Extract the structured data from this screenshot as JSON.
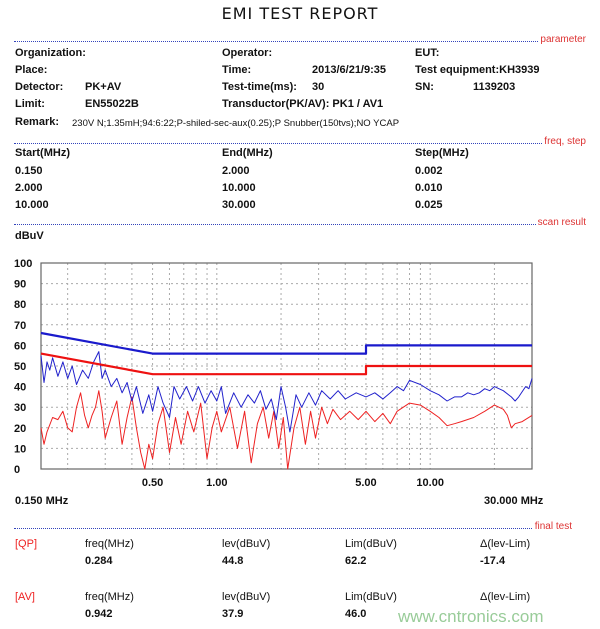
{
  "title": "EMI TEST REPORT",
  "sections": {
    "parameter": "parameter",
    "freq_step": "freq, step",
    "scan_result": "scan result",
    "final_test": "final test"
  },
  "parameter": {
    "organization_label": "Organization:",
    "operator_label": "Operator:",
    "eut_label": "EUT:",
    "place_label": "Place:",
    "time_label": "Time:",
    "time_value": "2013/6/21/9:35",
    "equipment": "Test equipment:KH3939",
    "detector_label": "Detector:",
    "detector_value": "PK+AV",
    "testtime_label": "Test-time(ms):",
    "testtime_value": "30",
    "sn_label": "SN:",
    "sn_value": "1139203",
    "limit_label": "Limit:",
    "limit_value": "EN55022B",
    "transductor": "Transductor(PK/AV): PK1  /  AV1",
    "remark_label": "Remark:",
    "remark_value": "230V N;1.35mH;94:6:22;P-shiled-sec-aux(0.25);P Snubber(150tvs);NO YCAP"
  },
  "freq_step": {
    "headers": [
      "Start(MHz)",
      "End(MHz)",
      "Step(MHz)"
    ],
    "rows": [
      [
        "0.150",
        "2.000",
        "0.002"
      ],
      [
        "2.000",
        "10.000",
        "0.010"
      ],
      [
        "10.000",
        "30.000",
        "0.025"
      ]
    ]
  },
  "final_test": [
    {
      "tag": "[QP]",
      "headers": [
        "freq(MHz)",
        "lev(dBuV)",
        "Lim(dBuV)",
        "Δ(lev-Lim)"
      ],
      "values": [
        "0.284",
        "44.8",
        "62.2",
        "-17.4"
      ]
    },
    {
      "tag": "[AV]",
      "headers": [
        "freq(MHz)",
        "lev(dBuV)",
        "Lim(dBuV)",
        "Δ(lev-Lim)"
      ],
      "values": [
        "0.942",
        "37.9",
        "46.0",
        ""
      ]
    }
  ],
  "watermark": "www.cntronics.com",
  "chart_data": {
    "type": "line",
    "ylabel": "dBuV",
    "xscale": "log",
    "xlim": [
      0.15,
      30
    ],
    "ylim": [
      0,
      100
    ],
    "yticks": [
      "0",
      "10",
      "20",
      "30",
      "40",
      "50",
      "60",
      "70",
      "80",
      "90",
      "100"
    ],
    "xticks": [
      {
        "v": 0.5,
        "label": "0.50"
      },
      {
        "v": 1,
        "label": "1.00"
      },
      {
        "v": 5,
        "label": "5.00"
      },
      {
        "v": 10,
        "label": "10.00"
      }
    ],
    "xmin_label": "0.150 MHz",
    "xmax_label": "30.000 MHz",
    "grid": true,
    "colors": {
      "pk": "#2222cc",
      "av": "#ee2222",
      "qp_limit": "#1a1acc",
      "av_limit": "#ee1111"
    },
    "series": [
      {
        "id": "qp_limit",
        "points": [
          [
            0.15,
            66
          ],
          [
            0.5,
            56
          ],
          [
            5,
            56
          ],
          [
            5,
            60
          ],
          [
            30,
            60
          ]
        ]
      },
      {
        "id": "av_limit",
        "points": [
          [
            0.15,
            56
          ],
          [
            0.5,
            46
          ],
          [
            5,
            46
          ],
          [
            5,
            50
          ],
          [
            30,
            50
          ]
        ]
      },
      {
        "id": "pk",
        "points": [
          [
            0.15,
            55
          ],
          [
            0.155,
            42
          ],
          [
            0.16,
            52
          ],
          [
            0.165,
            48
          ],
          [
            0.17,
            54
          ],
          [
            0.18,
            45
          ],
          [
            0.19,
            52
          ],
          [
            0.2,
            44
          ],
          [
            0.21,
            50
          ],
          [
            0.22,
            41
          ],
          [
            0.235,
            48
          ],
          [
            0.25,
            44
          ],
          [
            0.265,
            52
          ],
          [
            0.28,
            57
          ],
          [
            0.29,
            44
          ],
          [
            0.3,
            48
          ],
          [
            0.32,
            40
          ],
          [
            0.34,
            44
          ],
          [
            0.36,
            37
          ],
          [
            0.38,
            42
          ],
          [
            0.4,
            33
          ],
          [
            0.42,
            40
          ],
          [
            0.45,
            27
          ],
          [
            0.48,
            36
          ],
          [
            0.5,
            28
          ],
          [
            0.53,
            40
          ],
          [
            0.56,
            32
          ],
          [
            0.6,
            25
          ],
          [
            0.63,
            40
          ],
          [
            0.67,
            34
          ],
          [
            0.72,
            40
          ],
          [
            0.77,
            33
          ],
          [
            0.82,
            40
          ],
          [
            0.88,
            32
          ],
          [
            0.94,
            38
          ],
          [
            1.0,
            33
          ],
          [
            1.05,
            40
          ],
          [
            1.1,
            27
          ],
          [
            1.2,
            37
          ],
          [
            1.3,
            30
          ],
          [
            1.4,
            36
          ],
          [
            1.5,
            32
          ],
          [
            1.6,
            38
          ],
          [
            1.7,
            29
          ],
          [
            1.8,
            34
          ],
          [
            1.9,
            24
          ],
          [
            2.0,
            40
          ],
          [
            2.1,
            30
          ],
          [
            2.2,
            18
          ],
          [
            2.35,
            36
          ],
          [
            2.5,
            30
          ],
          [
            2.7,
            37
          ],
          [
            2.9,
            31
          ],
          [
            3.1,
            38
          ],
          [
            3.4,
            34
          ],
          [
            3.7,
            38
          ],
          [
            4.0,
            34
          ],
          [
            4.5,
            37
          ],
          [
            5.0,
            35
          ],
          [
            5.5,
            37
          ],
          [
            6,
            34
          ],
          [
            6.5,
            37
          ],
          [
            7,
            40
          ],
          [
            7.5,
            38
          ],
          [
            8,
            43
          ],
          [
            9,
            41
          ],
          [
            10,
            38
          ],
          [
            11,
            36
          ],
          [
            12,
            33
          ],
          [
            13,
            35
          ],
          [
            14,
            35
          ],
          [
            15,
            37
          ],
          [
            16,
            36
          ],
          [
            17,
            37
          ],
          [
            18,
            39
          ],
          [
            19,
            38
          ],
          [
            20,
            40
          ],
          [
            21,
            39
          ],
          [
            22,
            38
          ],
          [
            24,
            35
          ],
          [
            25,
            33
          ],
          [
            26,
            35
          ],
          [
            28,
            40
          ],
          [
            29,
            39
          ],
          [
            30,
            44
          ]
        ]
      },
      {
        "id": "av",
        "points": [
          [
            0.15,
            20
          ],
          [
            0.155,
            12
          ],
          [
            0.16,
            18
          ],
          [
            0.17,
            25
          ],
          [
            0.18,
            24
          ],
          [
            0.19,
            28
          ],
          [
            0.2,
            20
          ],
          [
            0.21,
            18
          ],
          [
            0.22,
            30
          ],
          [
            0.23,
            37
          ],
          [
            0.24,
            26
          ],
          [
            0.25,
            20
          ],
          [
            0.26,
            26
          ],
          [
            0.27,
            30
          ],
          [
            0.28,
            38
          ],
          [
            0.29,
            28
          ],
          [
            0.3,
            15
          ],
          [
            0.32,
            25
          ],
          [
            0.34,
            33
          ],
          [
            0.36,
            12
          ],
          [
            0.38,
            25
          ],
          [
            0.4,
            35
          ],
          [
            0.42,
            20
          ],
          [
            0.44,
            8
          ],
          [
            0.46,
            0
          ],
          [
            0.48,
            12
          ],
          [
            0.5,
            5
          ],
          [
            0.53,
            22
          ],
          [
            0.56,
            30
          ],
          [
            0.6,
            8
          ],
          [
            0.64,
            25
          ],
          [
            0.68,
            12
          ],
          [
            0.73,
            28
          ],
          [
            0.78,
            18
          ],
          [
            0.84,
            32
          ],
          [
            0.9,
            5
          ],
          [
            0.95,
            20
          ],
          [
            1.0,
            28
          ],
          [
            1.05,
            18
          ],
          [
            1.15,
            30
          ],
          [
            1.25,
            10
          ],
          [
            1.35,
            28
          ],
          [
            1.45,
            3
          ],
          [
            1.55,
            22
          ],
          [
            1.65,
            30
          ],
          [
            1.75,
            15
          ],
          [
            1.85,
            28
          ],
          [
            1.95,
            10
          ],
          [
            2.05,
            25
          ],
          [
            2.15,
            0
          ],
          [
            2.3,
            20
          ],
          [
            2.45,
            30
          ],
          [
            2.6,
            12
          ],
          [
            2.75,
            28
          ],
          [
            2.9,
            15
          ],
          [
            3.1,
            30
          ],
          [
            3.3,
            22
          ],
          [
            3.5,
            29
          ],
          [
            3.8,
            24
          ],
          [
            4.2,
            28
          ],
          [
            4.6,
            24
          ],
          [
            5.0,
            28
          ],
          [
            5.5,
            23
          ],
          [
            6,
            27
          ],
          [
            6.5,
            22
          ],
          [
            7,
            28
          ],
          [
            8,
            32
          ],
          [
            9,
            31
          ],
          [
            10,
            28
          ],
          [
            11,
            25
          ],
          [
            12,
            21
          ],
          [
            13,
            22
          ],
          [
            14,
            23
          ],
          [
            16,
            25
          ],
          [
            18,
            28
          ],
          [
            20,
            31
          ],
          [
            21,
            30
          ],
          [
            22,
            29
          ],
          [
            23,
            26
          ],
          [
            24,
            20
          ],
          [
            25,
            22
          ],
          [
            27,
            23
          ],
          [
            30,
            26
          ]
        ]
      }
    ]
  }
}
